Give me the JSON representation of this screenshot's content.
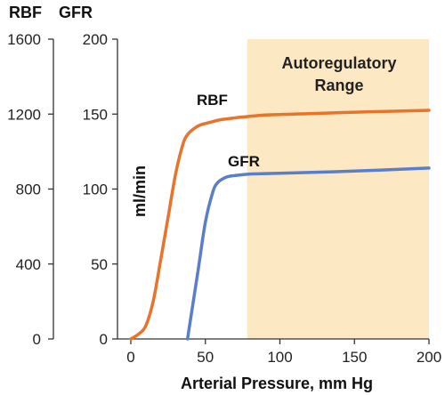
{
  "chart_data": {
    "type": "line",
    "xlabel": "Arterial Pressure, mm Hg",
    "ylabel": "ml/min",
    "xlim": [
      0,
      200
    ],
    "x_ticks": [
      0,
      50,
      100,
      150,
      200
    ],
    "y_axes": [
      {
        "title": "RBF",
        "ylim": [
          0,
          1600
        ],
        "ticks": [
          0,
          400,
          800,
          1200,
          1600
        ]
      },
      {
        "title": "GFR",
        "ylim": [
          0,
          200
        ],
        "ticks": [
          0,
          50,
          100,
          150,
          200
        ]
      }
    ],
    "shaded_region": {
      "label_lines": [
        "Autoregulatory",
        "Range"
      ],
      "x_start": 78,
      "x_end": 200,
      "color": "#fde8c4"
    },
    "series": [
      {
        "name": "RBF",
        "axis": "RBF",
        "color": "#e8732a",
        "x": [
          0,
          5,
          10,
          15,
          20,
          25,
          30,
          35,
          38,
          42,
          46,
          50,
          55,
          60,
          65,
          70,
          80,
          90,
          100,
          120,
          150,
          180,
          200
        ],
        "y": [
          0,
          25,
          70,
          200,
          420,
          650,
          880,
          1040,
          1090,
          1120,
          1140,
          1150,
          1160,
          1170,
          1175,
          1180,
          1188,
          1195,
          1198,
          1202,
          1210,
          1216,
          1220
        ]
      },
      {
        "name": "GFR",
        "axis": "GFR",
        "color": "#5a7ec9",
        "x": [
          38,
          45,
          50,
          55,
          58,
          62,
          66,
          70,
          80,
          100,
          150,
          200
        ],
        "y": [
          0,
          45,
          78,
          98,
          104,
          107,
          108.5,
          109,
          110,
          110.5,
          112,
          114
        ]
      }
    ]
  }
}
